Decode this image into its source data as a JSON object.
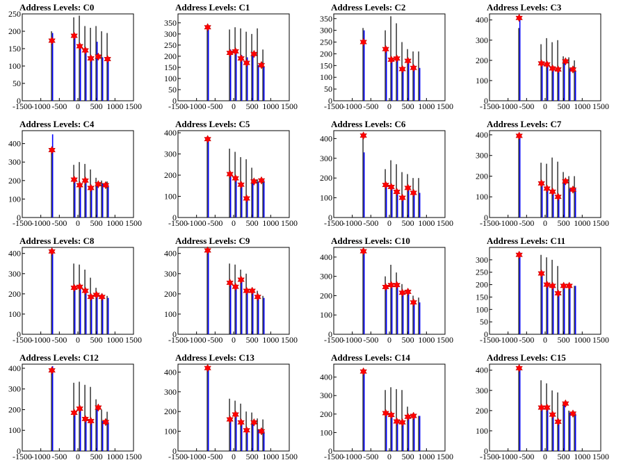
{
  "figure": {
    "background": "#ffffff",
    "frame_color": "#000000",
    "histogram_colors": [
      "#000000",
      "#0000ff"
    ],
    "marker_color": "#ff0000",
    "marker_shape": "star"
  },
  "chart_data": [
    {
      "type": "bar",
      "title": "Address Levels: C0",
      "xlim": [
        -1500,
        1500
      ],
      "ylim": [
        0,
        250
      ],
      "xticks": [
        -1500,
        -1000,
        -500,
        0,
        500,
        1000,
        1500
      ],
      "yticks": [
        0,
        50,
        100,
        150,
        200,
        250
      ],
      "xlabel": "",
      "ylabel": "",
      "peaks": {
        "x": [
          -700,
          -100,
          50,
          200,
          350,
          500,
          650,
          800
        ],
        "black": [
          200,
          240,
          245,
          215,
          210,
          215,
          200,
          195
        ],
        "blue": [
          195,
          185,
          155,
          145,
          125,
          170,
          125,
          120
        ]
      },
      "markers": {
        "x": [
          -700,
          -100,
          50,
          200,
          350,
          550,
          800
        ],
        "y": [
          173,
          187,
          157,
          145,
          122,
          127,
          120
        ]
      }
    },
    {
      "type": "bar",
      "title": "Address Levels: C1",
      "xlim": [
        -1500,
        1500
      ],
      "ylim": [
        0,
        390
      ],
      "xticks": [
        -1500,
        -1000,
        -500,
        0,
        500,
        1000,
        1500
      ],
      "yticks": [
        0,
        50,
        100,
        150,
        200,
        250,
        300,
        350
      ],
      "xlabel": "",
      "ylabel": "",
      "peaks": {
        "x": [
          -700,
          -100,
          50,
          200,
          350,
          500,
          650,
          800
        ],
        "black": [
          330,
          320,
          330,
          325,
          310,
          300,
          325,
          230
        ],
        "blue": [
          320,
          230,
          230,
          205,
          195,
          210,
          160,
          155
        ]
      },
      "markers": {
        "x": [
          -700,
          -100,
          50,
          200,
          350,
          550,
          750
        ],
        "y": [
          330,
          215,
          222,
          190,
          170,
          210,
          160
        ]
      }
    },
    {
      "type": "bar",
      "title": "Address Levels: C2",
      "xlim": [
        -1500,
        1500
      ],
      "ylim": [
        0,
        370
      ],
      "xticks": [
        -1500,
        -1000,
        -500,
        0,
        500,
        1000,
        1500
      ],
      "yticks": [
        0,
        50,
        100,
        150,
        200,
        250,
        300,
        350
      ],
      "xlabel": "",
      "ylabel": "",
      "peaks": {
        "x": [
          -700,
          -100,
          50,
          200,
          350,
          500,
          650,
          800
        ],
        "black": [
          310,
          300,
          360,
          330,
          250,
          220,
          210,
          210
        ],
        "blue": [
          300,
          230,
          180,
          180,
          140,
          170,
          150,
          140
        ]
      },
      "markers": {
        "x": [
          -700,
          -100,
          50,
          200,
          350,
          500,
          650
        ],
        "y": [
          250,
          220,
          175,
          180,
          135,
          170,
          140
        ]
      }
    },
    {
      "type": "bar",
      "title": "Address Levels: C3",
      "xlim": [
        -1500,
        1500
      ],
      "ylim": [
        0,
        430
      ],
      "xticks": [
        -1500,
        -1000,
        -500,
        0,
        500,
        1000,
        1500
      ],
      "yticks": [
        0,
        100,
        200,
        300,
        400
      ],
      "xlabel": "",
      "ylabel": "",
      "peaks": {
        "x": [
          -700,
          -100,
          50,
          200,
          350,
          500,
          650,
          800
        ],
        "black": [
          360,
          280,
          310,
          290,
          300,
          220,
          215,
          200
        ],
        "blue": [
          410,
          190,
          175,
          165,
          160,
          200,
          160,
          150
        ]
      },
      "markers": {
        "x": [
          -700,
          -100,
          50,
          200,
          350,
          550,
          750
        ],
        "y": [
          410,
          185,
          180,
          160,
          155,
          195,
          155
        ]
      }
    },
    {
      "type": "bar",
      "title": "Address Levels: C4",
      "xlim": [
        -1500,
        1500
      ],
      "ylim": [
        0,
        470
      ],
      "xticks": [
        -1500,
        -1000,
        -500,
        0,
        500,
        1000,
        1500
      ],
      "yticks": [
        0,
        100,
        200,
        300,
        400
      ],
      "xlabel": "",
      "ylabel": "",
      "peaks": {
        "x": [
          -700,
          -100,
          50,
          200,
          350,
          500,
          650,
          800
        ],
        "black": [
          380,
          285,
          300,
          290,
          260,
          215,
          200,
          195
        ],
        "blue": [
          450,
          210,
          180,
          200,
          165,
          180,
          185,
          175
        ]
      },
      "markers": {
        "x": [
          -700,
          -100,
          50,
          200,
          350,
          550,
          750
        ],
        "y": [
          365,
          205,
          175,
          200,
          160,
          180,
          175
        ]
      }
    },
    {
      "type": "bar",
      "title": "Address Levels: C5",
      "xlim": [
        -1500,
        1500
      ],
      "ylim": [
        0,
        410
      ],
      "xticks": [
        -1500,
        -1000,
        -500,
        0,
        500,
        1000,
        1500
      ],
      "yticks": [
        0,
        100,
        200,
        300,
        400
      ],
      "xlabel": "",
      "ylabel": "",
      "peaks": {
        "x": [
          -700,
          -100,
          50,
          200,
          350,
          500,
          650,
          800
        ],
        "black": [
          375,
          325,
          310,
          285,
          275,
          235,
          180,
          175
        ],
        "blue": [
          380,
          210,
          190,
          155,
          90,
          180,
          170,
          175
        ]
      },
      "markers": {
        "x": [
          -700,
          -100,
          50,
          200,
          350,
          550,
          750
        ],
        "y": [
          370,
          205,
          185,
          155,
          90,
          170,
          175
        ]
      }
    },
    {
      "type": "bar",
      "title": "Address Levels: C6",
      "xlim": [
        -1500,
        1500
      ],
      "ylim": [
        0,
        440
      ],
      "xticks": [
        -1500,
        -1000,
        -500,
        0,
        500,
        1000,
        1500
      ],
      "yticks": [
        0,
        100,
        200,
        300,
        400
      ],
      "xlabel": "",
      "ylabel": "",
      "peaks": {
        "x": [
          -700,
          -100,
          50,
          200,
          350,
          500,
          650,
          800
        ],
        "black": [
          420,
          245,
          290,
          270,
          230,
          220,
          200,
          200
        ],
        "blue": [
          330,
          170,
          160,
          140,
          100,
          160,
          130,
          125
        ]
      },
      "markers": {
        "x": [
          -700,
          -100,
          50,
          200,
          350,
          500,
          650
        ],
        "y": [
          415,
          165,
          155,
          130,
          100,
          150,
          125
        ]
      }
    },
    {
      "type": "bar",
      "title": "Address Levels: C7",
      "xlim": [
        -1500,
        1500
      ],
      "ylim": [
        0,
        420
      ],
      "xticks": [
        -1500,
        -1000,
        -500,
        0,
        500,
        1000,
        1500
      ],
      "yticks": [
        0,
        100,
        200,
        300,
        400
      ],
      "xlabel": "",
      "ylabel": "",
      "peaks": {
        "x": [
          -700,
          -100,
          50,
          200,
          350,
          500,
          650,
          800
        ],
        "black": [
          395,
          265,
          260,
          290,
          270,
          220,
          200,
          200
        ],
        "blue": [
          400,
          170,
          145,
          130,
          100,
          180,
          140,
          140
        ]
      },
      "markers": {
        "x": [
          -700,
          -100,
          50,
          200,
          350,
          550,
          750
        ],
        "y": [
          395,
          165,
          140,
          125,
          100,
          175,
          135
        ]
      }
    },
    {
      "type": "bar",
      "title": "Address Levels: C8",
      "xlim": [
        -1500,
        1500
      ],
      "ylim": [
        0,
        430
      ],
      "xticks": [
        -1500,
        -1000,
        -500,
        0,
        500,
        1000,
        1500
      ],
      "yticks": [
        0,
        100,
        200,
        300,
        400
      ],
      "xlabel": "",
      "ylabel": "",
      "peaks": {
        "x": [
          -700,
          -100,
          50,
          200,
          350,
          500,
          650,
          800
        ],
        "black": [
          410,
          350,
          345,
          320,
          280,
          230,
          200,
          190
        ],
        "blue": [
          420,
          235,
          240,
          215,
          185,
          195,
          185,
          180
        ]
      },
      "markers": {
        "x": [
          -700,
          -100,
          50,
          200,
          350,
          500,
          650
        ],
        "y": [
          410,
          230,
          235,
          215,
          185,
          195,
          185
        ]
      }
    },
    {
      "type": "bar",
      "title": "Address Levels: C9",
      "xlim": [
        -1500,
        1500
      ],
      "ylim": [
        0,
        430
      ],
      "xticks": [
        -1500,
        -1000,
        -500,
        0,
        500,
        1000,
        1500
      ],
      "yticks": [
        0,
        100,
        200,
        300,
        400
      ],
      "xlabel": "",
      "ylabel": "",
      "peaks": {
        "x": [
          -700,
          -100,
          50,
          200,
          350,
          500,
          650,
          800
        ],
        "black": [
          415,
          350,
          345,
          320,
          300,
          220,
          215,
          190
        ],
        "blue": [
          410,
          260,
          240,
          270,
          215,
          215,
          190,
          180
        ]
      },
      "markers": {
        "x": [
          -700,
          -100,
          50,
          200,
          350,
          500,
          650
        ],
        "y": [
          415,
          255,
          235,
          270,
          215,
          215,
          185
        ]
      }
    },
    {
      "type": "bar",
      "title": "Address Levels: C10",
      "xlim": [
        -1500,
        1500
      ],
      "ylim": [
        0,
        450
      ],
      "xticks": [
        -1500,
        -1000,
        -500,
        0,
        500,
        1000,
        1500
      ],
      "yticks": [
        0,
        100,
        200,
        300,
        400
      ],
      "xlabel": "",
      "ylabel": "",
      "peaks": {
        "x": [
          -700,
          -100,
          50,
          200,
          350,
          500,
          650,
          800
        ],
        "black": [
          425,
          300,
          360,
          320,
          260,
          230,
          200,
          190
        ],
        "blue": [
          430,
          250,
          260,
          265,
          220,
          230,
          170,
          165
        ]
      },
      "markers": {
        "x": [
          -700,
          -100,
          50,
          200,
          350,
          500,
          650
        ],
        "y": [
          430,
          245,
          255,
          255,
          215,
          220,
          165
        ]
      }
    },
    {
      "type": "bar",
      "title": "Address Levels: C11",
      "xlim": [
        -1500,
        1500
      ],
      "ylim": [
        0,
        350
      ],
      "xticks": [
        -1500,
        -1000,
        -500,
        0,
        500,
        1000,
        1500
      ],
      "yticks": [
        0,
        50,
        100,
        150,
        200,
        250,
        300
      ],
      "xlabel": "",
      "ylabel": "",
      "peaks": {
        "x": [
          -700,
          -100,
          50,
          200,
          350,
          500,
          650,
          800
        ],
        "black": [
          310,
          320,
          310,
          300,
          275,
          200,
          195,
          195
        ],
        "blue": [
          330,
          250,
          205,
          200,
          170,
          200,
          200,
          195
        ]
      },
      "markers": {
        "x": [
          -700,
          -100,
          50,
          200,
          350,
          500,
          650
        ],
        "y": [
          320,
          245,
          200,
          195,
          165,
          195,
          195
        ]
      }
    },
    {
      "type": "bar",
      "title": "Address Levels: C12",
      "xlim": [
        -1500,
        1500
      ],
      "ylim": [
        0,
        420
      ],
      "xticks": [
        -1500,
        -1000,
        -500,
        0,
        500,
        1000,
        1500
      ],
      "yticks": [
        0,
        100,
        200,
        300,
        400
      ],
      "xlabel": "",
      "ylabel": "",
      "peaks": {
        "x": [
          -700,
          -100,
          50,
          200,
          350,
          500,
          650,
          800
        ],
        "black": [
          400,
          330,
          335,
          320,
          310,
          250,
          200,
          190
        ],
        "blue": [
          410,
          190,
          210,
          160,
          150,
          215,
          145,
          140
        ]
      },
      "markers": {
        "x": [
          -700,
          -100,
          50,
          200,
          350,
          550,
          750
        ],
        "y": [
          390,
          185,
          205,
          155,
          145,
          210,
          140
        ]
      }
    },
    {
      "type": "bar",
      "title": "Address Levels: C13",
      "xlim": [
        -1500,
        1500
      ],
      "ylim": [
        0,
        440
      ],
      "xticks": [
        -1500,
        -1000,
        -500,
        0,
        500,
        1000,
        1500
      ],
      "yticks": [
        0,
        100,
        200,
        300,
        400
      ],
      "xlabel": "",
      "ylabel": "",
      "peaks": {
        "x": [
          -700,
          -100,
          50,
          200,
          350,
          500,
          650,
          800
        ],
        "black": [
          415,
          265,
          255,
          240,
          200,
          195,
          165,
          160
        ],
        "blue": [
          425,
          165,
          190,
          150,
          110,
          150,
          110,
          100
        ]
      },
      "markers": {
        "x": [
          -700,
          -100,
          50,
          200,
          350,
          550,
          750
        ],
        "y": [
          420,
          160,
          185,
          145,
          105,
          145,
          100
        ]
      }
    },
    {
      "type": "bar",
      "title": "Address Levels: C14",
      "xlim": [
        -1500,
        1500
      ],
      "ylim": [
        0,
        470
      ],
      "xticks": [
        -1500,
        -1000,
        -500,
        0,
        500,
        1000,
        1500
      ],
      "yticks": [
        0,
        100,
        200,
        300,
        400
      ],
      "xlabel": "",
      "ylabel": "",
      "peaks": {
        "x": [
          -700,
          -100,
          50,
          200,
          350,
          500,
          650,
          800
        ],
        "black": [
          440,
          330,
          345,
          335,
          330,
          240,
          200,
          190
        ],
        "blue": [
          440,
          210,
          200,
          165,
          160,
          190,
          195,
          190
        ]
      },
      "markers": {
        "x": [
          -700,
          -100,
          50,
          200,
          350,
          500,
          650
        ],
        "y": [
          430,
          205,
          195,
          160,
          155,
          185,
          190
        ]
      }
    },
    {
      "type": "bar",
      "title": "Address Levels: C15",
      "xlim": [
        -1500,
        1500
      ],
      "ylim": [
        0,
        430
      ],
      "xticks": [
        -1500,
        -1000,
        -500,
        0,
        500,
        1000,
        1500
      ],
      "yticks": [
        0,
        100,
        200,
        300,
        400
      ],
      "xlabel": "",
      "ylabel": "",
      "peaks": {
        "x": [
          -700,
          -100,
          50,
          200,
          350,
          500,
          650,
          800
        ],
        "black": [
          400,
          350,
          335,
          300,
          290,
          240,
          200,
          195
        ],
        "blue": [
          410,
          220,
          215,
          185,
          150,
          240,
          190,
          185
        ]
      },
      "markers": {
        "x": [
          -700,
          -100,
          50,
          200,
          350,
          550,
          750
        ],
        "y": [
          410,
          215,
          215,
          180,
          145,
          235,
          185
        ]
      }
    }
  ]
}
